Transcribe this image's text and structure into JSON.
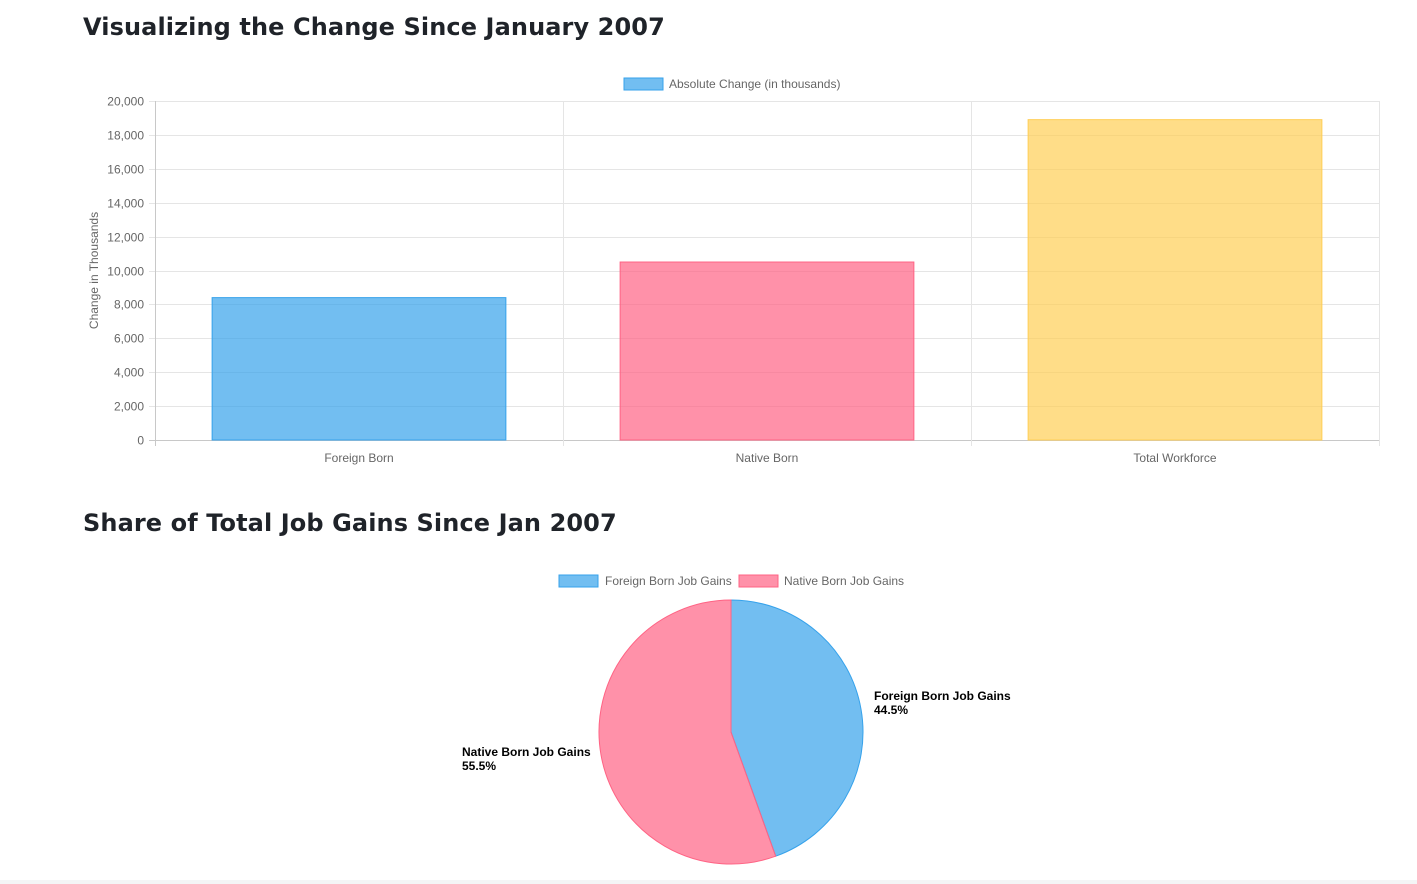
{
  "sections": {
    "bar_title": "Visualizing the Change Since January 2007",
    "pie_title": "Share of Total Job Gains Since Jan 2007"
  },
  "chart_data": [
    {
      "type": "bar",
      "categories": [
        "Foreign Born",
        "Native Born",
        "Total Workforce"
      ],
      "series": [
        {
          "name": "Absolute Change (in thousands)",
          "values": [
            8400,
            10500,
            18900
          ],
          "colors": [
            "#36A2EB",
            "#FF6384",
            "#FFCE56"
          ]
        }
      ],
      "ylabel": "Change in Thousands",
      "xlabel": "",
      "ylim": [
        0,
        20000
      ],
      "yticks": [
        "0",
        "2,000",
        "4,000",
        "6,000",
        "8,000",
        "10,000",
        "12,000",
        "14,000",
        "16,000",
        "18,000",
        "20,000"
      ],
      "grid": true,
      "legend": "top-center"
    },
    {
      "type": "pie",
      "labels": [
        "Foreign Born Job Gains",
        "Native Born Job Gains"
      ],
      "values": [
        44.5,
        55.5
      ],
      "value_labels": [
        "44.5%",
        "55.5%"
      ],
      "colors": [
        "#36A2EB",
        "#FF6384"
      ],
      "legend": "top-center"
    }
  ]
}
